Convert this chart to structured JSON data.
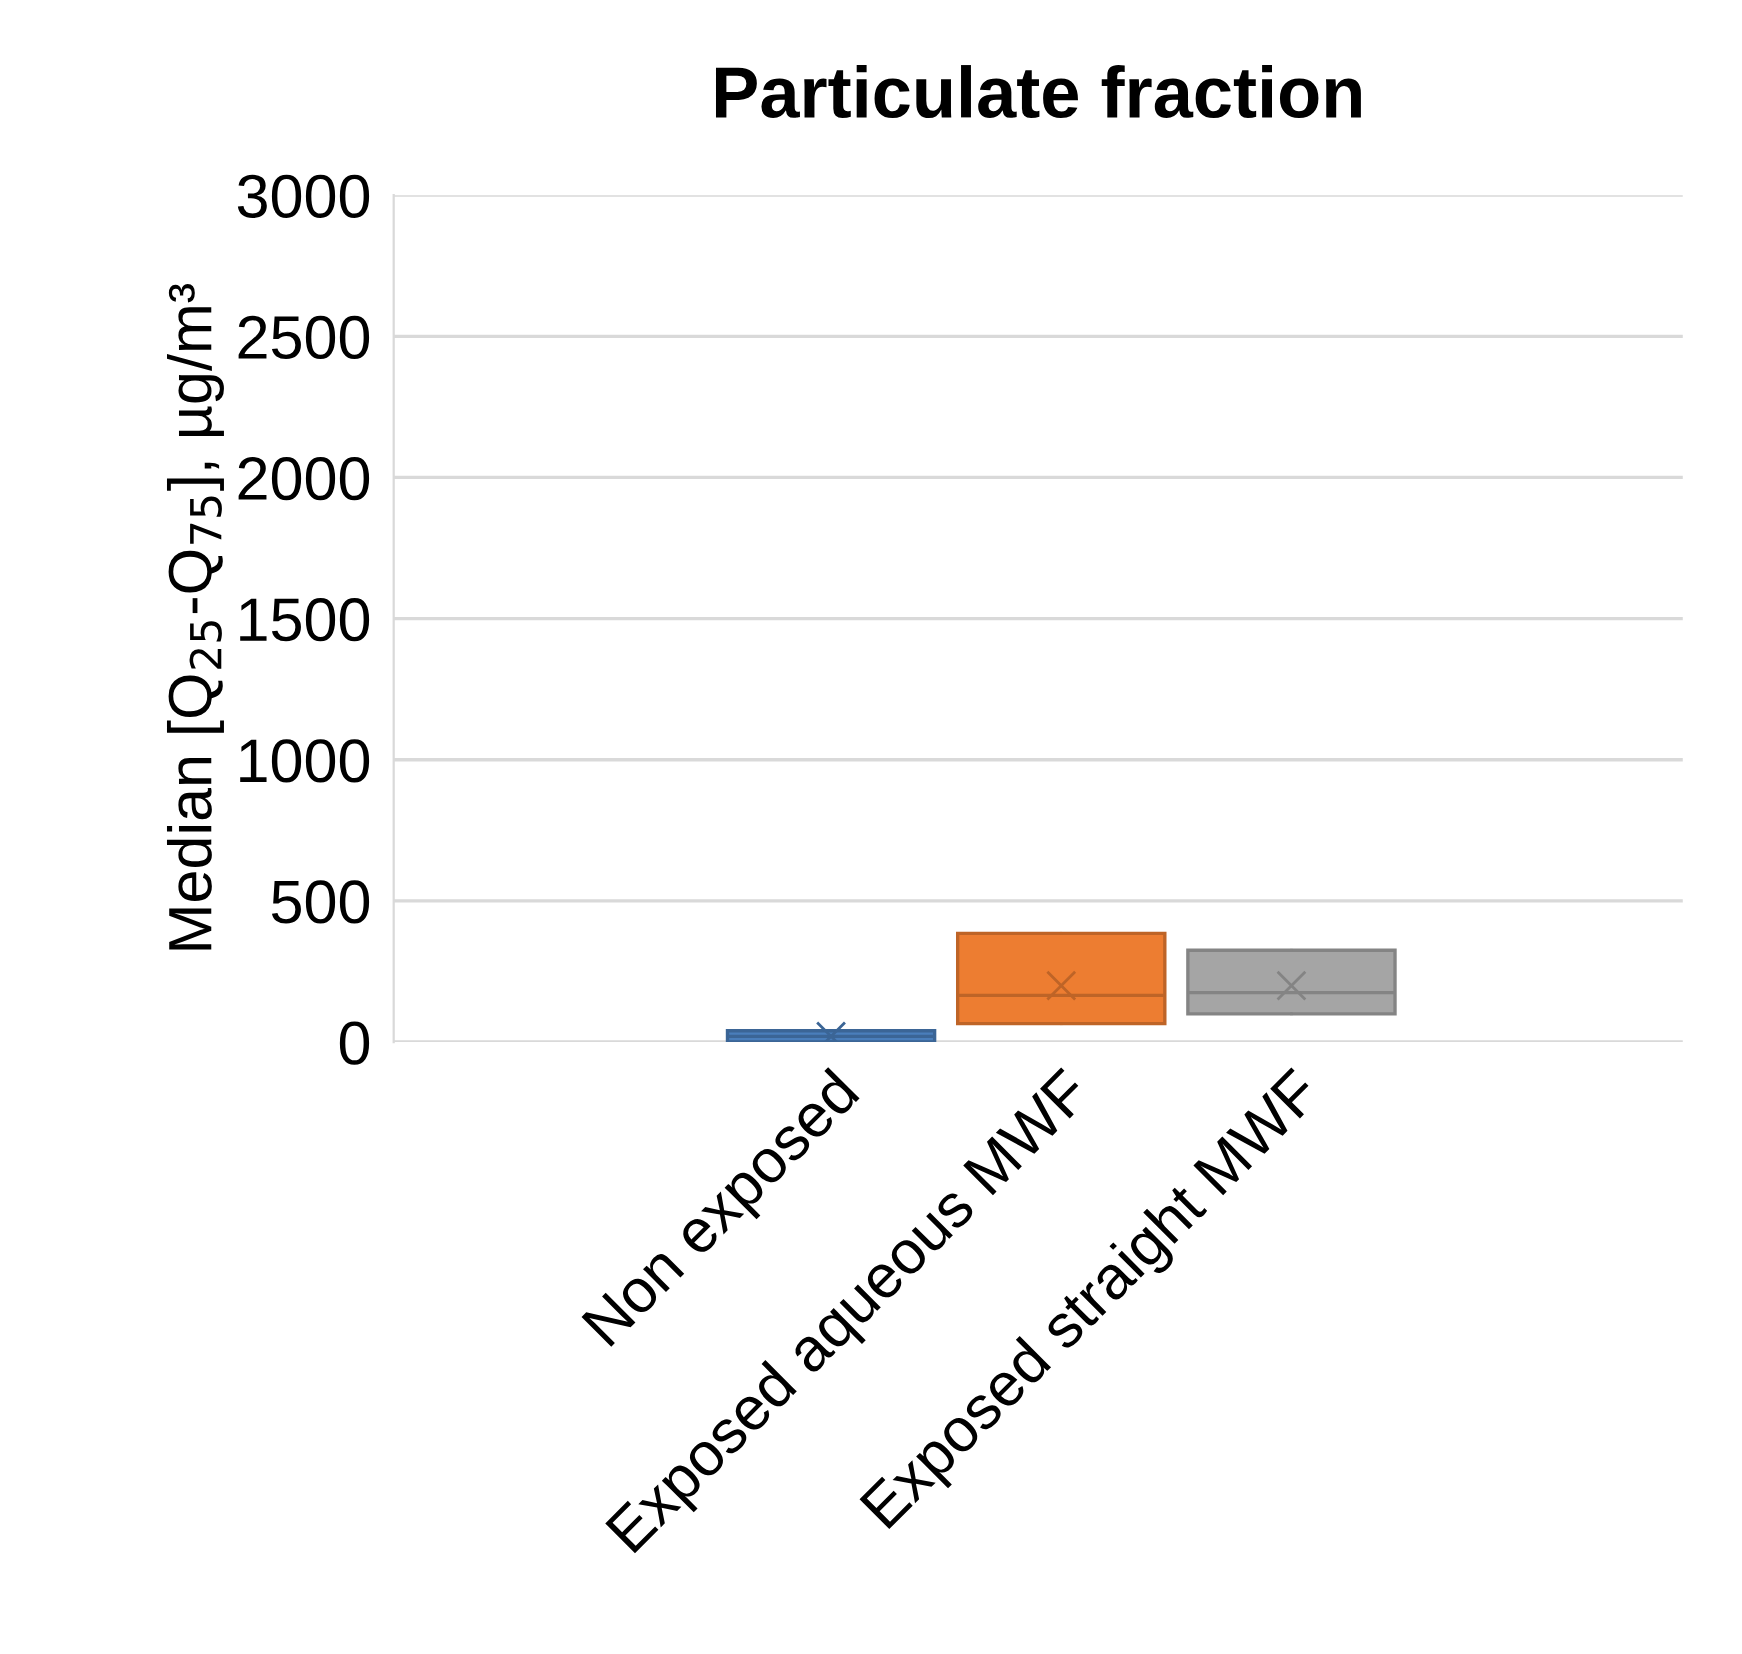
{
  "chart_data": {
    "type": "box",
    "title": "Particulate fraction",
    "ylabel": "Median [Q$_{25}$-Q$_{75}$], µg/m³",
    "categories": [
      "Non exposed",
      "Exposed aqueous MWF",
      "Exposed straight MWF"
    ],
    "colors": [
      "#4a7ebb",
      "#ed7d31",
      "#a5a5a5"
    ],
    "boxes": [
      {
        "low": 0,
        "q1": 0,
        "median": 20,
        "q3": 40,
        "high": 40,
        "mean": 20
      },
      {
        "low": 65,
        "q1": 65,
        "median": 165,
        "q3": 385,
        "high": 385,
        "mean": 200
      },
      {
        "low": 100,
        "q1": 100,
        "median": 175,
        "q3": 325,
        "high": 325,
        "mean": 200
      }
    ],
    "ylim": [
      0,
      3000
    ],
    "yticks": [
      0,
      500,
      1000,
      1500,
      2000,
      2500,
      3000
    ],
    "grid": "y",
    "legend": false,
    "marker": "cross"
  }
}
